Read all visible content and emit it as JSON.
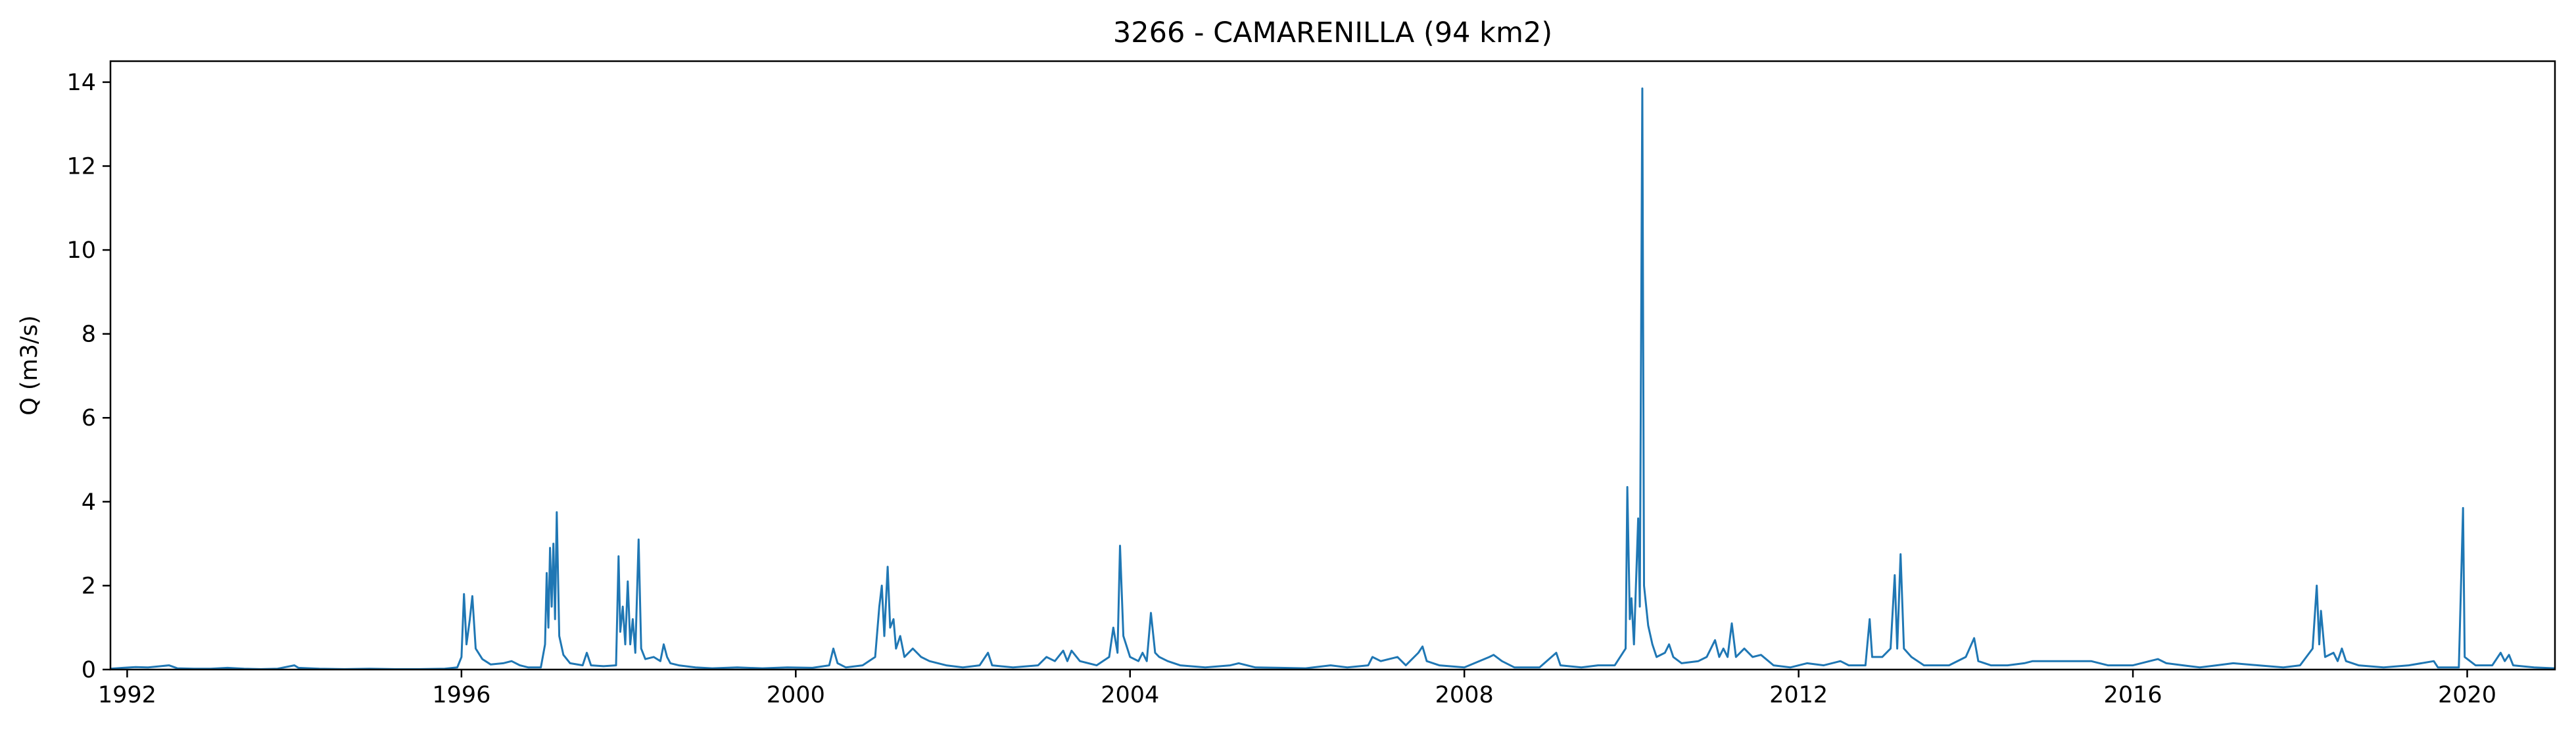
{
  "chart_data": {
    "type": "line",
    "title": "3266 - CAMARENILLA (94 km2)",
    "xlabel": "",
    "ylabel": "Q (m3/s)",
    "xlim": [
      1991.8,
      2021.05
    ],
    "ylim": [
      0,
      14.5
    ],
    "grid": false,
    "legend": "none",
    "x_ticks": [
      {
        "value": 1992,
        "label": "1992"
      },
      {
        "value": 1996,
        "label": "1996"
      },
      {
        "value": 2000,
        "label": "2000"
      },
      {
        "value": 2004,
        "label": "2004"
      },
      {
        "value": 2008,
        "label": "2008"
      },
      {
        "value": 2012,
        "label": "2012"
      },
      {
        "value": 2016,
        "label": "2016"
      },
      {
        "value": 2020,
        "label": "2020"
      }
    ],
    "y_ticks": [
      {
        "value": 0,
        "label": "0"
      },
      {
        "value": 2,
        "label": "2"
      },
      {
        "value": 4,
        "label": "4"
      },
      {
        "value": 6,
        "label": "6"
      },
      {
        "value": 8,
        "label": "8"
      },
      {
        "value": 10,
        "label": "10"
      },
      {
        "value": 12,
        "label": "12"
      },
      {
        "value": 14,
        "label": "14"
      }
    ],
    "series": [
      {
        "name": "Q",
        "color": "#1f77b4",
        "points": [
          [
            1991.8,
            0.02
          ],
          [
            1991.95,
            0.04
          ],
          [
            1992.1,
            0.06
          ],
          [
            1992.25,
            0.05
          ],
          [
            1992.4,
            0.08
          ],
          [
            1992.5,
            0.1
          ],
          [
            1992.6,
            0.03
          ],
          [
            1992.8,
            0.02
          ],
          [
            1993.0,
            0.02
          ],
          [
            1993.2,
            0.04
          ],
          [
            1993.4,
            0.02
          ],
          [
            1993.6,
            0.01
          ],
          [
            1993.8,
            0.02
          ],
          [
            1994.0,
            0.1
          ],
          [
            1994.05,
            0.04
          ],
          [
            1994.3,
            0.02
          ],
          [
            1994.6,
            0.01
          ],
          [
            1994.9,
            0.02
          ],
          [
            1995.2,
            0.01
          ],
          [
            1995.5,
            0.01
          ],
          [
            1995.8,
            0.02
          ],
          [
            1995.95,
            0.05
          ],
          [
            1996.0,
            0.3
          ],
          [
            1996.03,
            1.8
          ],
          [
            1996.06,
            0.6
          ],
          [
            1996.1,
            1.2
          ],
          [
            1996.13,
            1.75
          ],
          [
            1996.17,
            0.5
          ],
          [
            1996.25,
            0.25
          ],
          [
            1996.35,
            0.12
          ],
          [
            1996.5,
            0.15
          ],
          [
            1996.6,
            0.2
          ],
          [
            1996.7,
            0.1
          ],
          [
            1996.8,
            0.05
          ],
          [
            1996.95,
            0.05
          ],
          [
            1997.0,
            0.6
          ],
          [
            1997.02,
            2.3
          ],
          [
            1997.04,
            1.0
          ],
          [
            1997.06,
            2.9
          ],
          [
            1997.08,
            1.5
          ],
          [
            1997.1,
            3.0
          ],
          [
            1997.12,
            1.2
          ],
          [
            1997.14,
            3.75
          ],
          [
            1997.17,
            0.8
          ],
          [
            1997.22,
            0.35
          ],
          [
            1997.3,
            0.15
          ],
          [
            1997.45,
            0.1
          ],
          [
            1997.5,
            0.4
          ],
          [
            1997.55,
            0.1
          ],
          [
            1997.7,
            0.08
          ],
          [
            1997.85,
            0.1
          ],
          [
            1997.88,
            2.7
          ],
          [
            1997.9,
            0.9
          ],
          [
            1997.93,
            1.5
          ],
          [
            1997.96,
            0.6
          ],
          [
            1997.99,
            2.1
          ],
          [
            1998.02,
            0.6
          ],
          [
            1998.05,
            1.2
          ],
          [
            1998.08,
            0.4
          ],
          [
            1998.12,
            3.1
          ],
          [
            1998.15,
            0.5
          ],
          [
            1998.2,
            0.25
          ],
          [
            1998.3,
            0.3
          ],
          [
            1998.38,
            0.2
          ],
          [
            1998.42,
            0.6
          ],
          [
            1998.46,
            0.3
          ],
          [
            1998.5,
            0.15
          ],
          [
            1998.6,
            0.1
          ],
          [
            1998.8,
            0.05
          ],
          [
            1999.0,
            0.03
          ],
          [
            1999.3,
            0.05
          ],
          [
            1999.6,
            0.03
          ],
          [
            1999.9,
            0.05
          ],
          [
            2000.2,
            0.04
          ],
          [
            2000.4,
            0.1
          ],
          [
            2000.45,
            0.5
          ],
          [
            2000.5,
            0.15
          ],
          [
            2000.6,
            0.05
          ],
          [
            2000.8,
            0.1
          ],
          [
            2000.95,
            0.3
          ],
          [
            2001.0,
            1.5
          ],
          [
            2001.03,
            2.0
          ],
          [
            2001.06,
            0.8
          ],
          [
            2001.1,
            2.45
          ],
          [
            2001.13,
            1.0
          ],
          [
            2001.17,
            1.2
          ],
          [
            2001.2,
            0.5
          ],
          [
            2001.25,
            0.8
          ],
          [
            2001.3,
            0.3
          ],
          [
            2001.4,
            0.5
          ],
          [
            2001.5,
            0.3
          ],
          [
            2001.6,
            0.2
          ],
          [
            2001.8,
            0.1
          ],
          [
            2002.0,
            0.05
          ],
          [
            2002.2,
            0.1
          ],
          [
            2002.3,
            0.4
          ],
          [
            2002.35,
            0.1
          ],
          [
            2002.6,
            0.05
          ],
          [
            2002.9,
            0.1
          ],
          [
            2003.0,
            0.3
          ],
          [
            2003.1,
            0.2
          ],
          [
            2003.2,
            0.45
          ],
          [
            2003.25,
            0.2
          ],
          [
            2003.3,
            0.45
          ],
          [
            2003.4,
            0.2
          ],
          [
            2003.6,
            0.1
          ],
          [
            2003.75,
            0.3
          ],
          [
            2003.8,
            1.0
          ],
          [
            2003.85,
            0.4
          ],
          [
            2003.88,
            2.95
          ],
          [
            2003.92,
            0.8
          ],
          [
            2004.0,
            0.3
          ],
          [
            2004.1,
            0.2
          ],
          [
            2004.15,
            0.4
          ],
          [
            2004.2,
            0.2
          ],
          [
            2004.25,
            1.35
          ],
          [
            2004.3,
            0.4
          ],
          [
            2004.35,
            0.3
          ],
          [
            2004.45,
            0.2
          ],
          [
            2004.6,
            0.1
          ],
          [
            2004.9,
            0.05
          ],
          [
            2005.2,
            0.1
          ],
          [
            2005.3,
            0.15
          ],
          [
            2005.5,
            0.05
          ],
          [
            2005.8,
            0.04
          ],
          [
            2006.1,
            0.03
          ],
          [
            2006.4,
            0.1
          ],
          [
            2006.6,
            0.05
          ],
          [
            2006.85,
            0.1
          ],
          [
            2006.9,
            0.3
          ],
          [
            2007.0,
            0.2
          ],
          [
            2007.2,
            0.3
          ],
          [
            2007.3,
            0.1
          ],
          [
            2007.45,
            0.4
          ],
          [
            2007.5,
            0.55
          ],
          [
            2007.55,
            0.2
          ],
          [
            2007.7,
            0.1
          ],
          [
            2008.0,
            0.05
          ],
          [
            2008.3,
            0.3
          ],
          [
            2008.35,
            0.35
          ],
          [
            2008.45,
            0.2
          ],
          [
            2008.6,
            0.05
          ],
          [
            2008.9,
            0.05
          ],
          [
            2009.1,
            0.4
          ],
          [
            2009.15,
            0.1
          ],
          [
            2009.4,
            0.05
          ],
          [
            2009.6,
            0.1
          ],
          [
            2009.8,
            0.1
          ],
          [
            2009.93,
            0.5
          ],
          [
            2009.95,
            4.35
          ],
          [
            2009.98,
            1.2
          ],
          [
            2010.0,
            1.7
          ],
          [
            2010.03,
            0.6
          ],
          [
            2010.08,
            3.6
          ],
          [
            2010.1,
            1.5
          ],
          [
            2010.13,
            13.85
          ],
          [
            2010.15,
            2.0
          ],
          [
            2010.2,
            1.05
          ],
          [
            2010.25,
            0.6
          ],
          [
            2010.3,
            0.3
          ],
          [
            2010.4,
            0.4
          ],
          [
            2010.45,
            0.6
          ],
          [
            2010.5,
            0.3
          ],
          [
            2010.6,
            0.15
          ],
          [
            2010.8,
            0.2
          ],
          [
            2010.9,
            0.3
          ],
          [
            2011.0,
            0.7
          ],
          [
            2011.05,
            0.3
          ],
          [
            2011.1,
            0.5
          ],
          [
            2011.15,
            0.3
          ],
          [
            2011.2,
            1.1
          ],
          [
            2011.25,
            0.3
          ],
          [
            2011.35,
            0.5
          ],
          [
            2011.45,
            0.3
          ],
          [
            2011.55,
            0.35
          ],
          [
            2011.7,
            0.1
          ],
          [
            2011.9,
            0.05
          ],
          [
            2012.1,
            0.15
          ],
          [
            2012.3,
            0.1
          ],
          [
            2012.5,
            0.2
          ],
          [
            2012.6,
            0.1
          ],
          [
            2012.8,
            0.1
          ],
          [
            2012.85,
            1.2
          ],
          [
            2012.88,
            0.3
          ],
          [
            2013.0,
            0.3
          ],
          [
            2013.1,
            0.5
          ],
          [
            2013.15,
            2.25
          ],
          [
            2013.18,
            0.5
          ],
          [
            2013.22,
            2.75
          ],
          [
            2013.26,
            0.5
          ],
          [
            2013.35,
            0.3
          ],
          [
            2013.5,
            0.1
          ],
          [
            2013.8,
            0.1
          ],
          [
            2014.0,
            0.3
          ],
          [
            2014.1,
            0.75
          ],
          [
            2014.15,
            0.2
          ],
          [
            2014.3,
            0.1
          ],
          [
            2014.5,
            0.1
          ],
          [
            2014.7,
            0.15
          ],
          [
            2014.8,
            0.2
          ],
          [
            2015.0,
            0.2
          ],
          [
            2015.2,
            0.2
          ],
          [
            2015.5,
            0.2
          ],
          [
            2015.7,
            0.1
          ],
          [
            2016.0,
            0.1
          ],
          [
            2016.2,
            0.2
          ],
          [
            2016.3,
            0.25
          ],
          [
            2016.4,
            0.15
          ],
          [
            2016.6,
            0.1
          ],
          [
            2016.8,
            0.05
          ],
          [
            2017.0,
            0.1
          ],
          [
            2017.2,
            0.15
          ],
          [
            2017.5,
            0.1
          ],
          [
            2017.8,
            0.05
          ],
          [
            2018.0,
            0.1
          ],
          [
            2018.15,
            0.5
          ],
          [
            2018.2,
            2.0
          ],
          [
            2018.23,
            0.6
          ],
          [
            2018.25,
            1.4
          ],
          [
            2018.3,
            0.3
          ],
          [
            2018.4,
            0.4
          ],
          [
            2018.45,
            0.2
          ],
          [
            2018.5,
            0.5
          ],
          [
            2018.55,
            0.2
          ],
          [
            2018.7,
            0.1
          ],
          [
            2019.0,
            0.05
          ],
          [
            2019.3,
            0.1
          ],
          [
            2019.6,
            0.2
          ],
          [
            2019.65,
            0.05
          ],
          [
            2019.9,
            0.05
          ],
          [
            2019.95,
            3.85
          ],
          [
            2019.97,
            0.3
          ],
          [
            2020.1,
            0.1
          ],
          [
            2020.3,
            0.1
          ],
          [
            2020.4,
            0.4
          ],
          [
            2020.45,
            0.2
          ],
          [
            2020.5,
            0.35
          ],
          [
            2020.55,
            0.1
          ],
          [
            2020.8,
            0.05
          ],
          [
            2021.05,
            0.03
          ]
        ]
      }
    ]
  }
}
